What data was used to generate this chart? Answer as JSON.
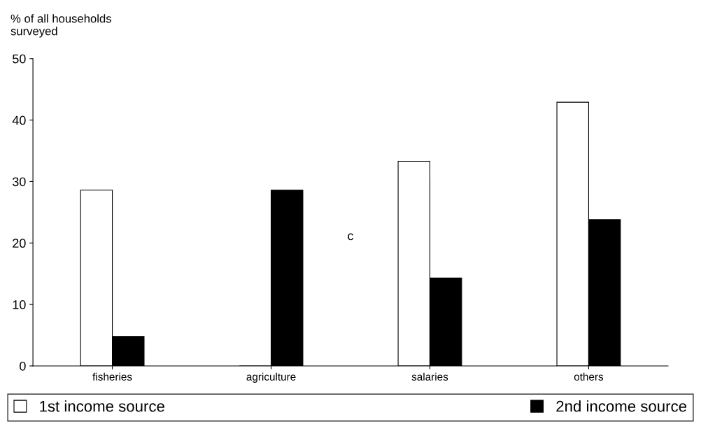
{
  "chart_data": {
    "type": "bar",
    "ylabel": "% of all households\nsurveyed",
    "categories": [
      "fisheries",
      "agriculture",
      "salaries",
      "others"
    ],
    "series": [
      {
        "name": "1st income source",
        "color": "#ffffff",
        "values": [
          28.6,
          0,
          33.3,
          42.9
        ]
      },
      {
        "name": "2nd income source",
        "color": "#000000",
        "values": [
          4.8,
          28.6,
          14.3,
          23.8
        ]
      }
    ],
    "ylim": [
      0,
      50
    ],
    "yticks": [
      0,
      10,
      20,
      30,
      40,
      50
    ],
    "grid": false,
    "legend": "bottom",
    "annotations": [
      "c"
    ]
  }
}
